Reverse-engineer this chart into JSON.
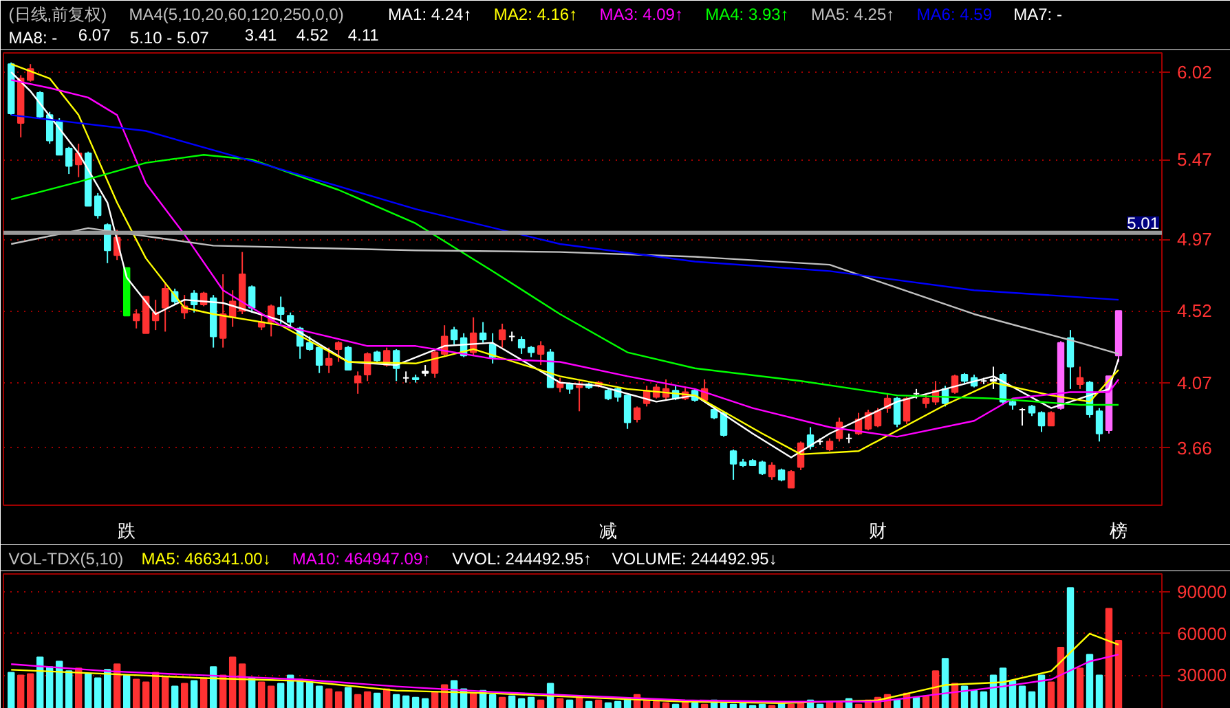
{
  "chart_data": [
    {
      "type": "candlestick",
      "title": "(日线,前复权)",
      "subtitle": "MA4(5,10,20,60,120,250,0,0)",
      "categories": [
        null,
        null,
        null,
        null,
        null,
        null,
        null,
        null,
        null,
        null,
        null,
        null,
        "跌",
        null,
        null,
        null,
        null,
        null,
        null,
        null,
        null,
        null,
        null,
        null,
        null,
        null,
        null,
        null,
        null,
        null,
        null,
        null,
        null,
        null,
        null,
        null,
        null,
        null,
        null,
        null,
        null,
        null,
        null,
        null,
        null,
        null,
        null,
        null,
        null,
        null,
        null,
        null,
        null,
        null,
        null,
        null,
        null,
        null,
        null,
        null,
        null,
        null,
        "减",
        null,
        null,
        null,
        null,
        null,
        null,
        null,
        null,
        null,
        null,
        null,
        null,
        null,
        null,
        null,
        null,
        null,
        null,
        null,
        null,
        null,
        null,
        null,
        null,
        null,
        null,
        null,
        "财",
        null,
        null,
        null,
        null,
        null,
        null,
        null,
        null,
        null,
        null,
        null,
        null,
        null,
        null,
        null,
        null,
        null,
        null,
        null,
        null,
        null,
        null,
        null,
        null,
        "榜"
      ],
      "ohlc": [
        [
          6.07,
          6.08,
          5.75,
          5.76
        ],
        [
          5.7,
          6.0,
          5.61,
          5.98
        ],
        [
          5.97,
          6.07,
          5.96,
          6.04
        ],
        [
          5.89,
          5.9,
          5.73,
          5.74
        ],
        [
          5.75,
          5.77,
          5.57,
          5.59
        ],
        [
          5.71,
          5.73,
          5.5,
          5.5
        ],
        [
          5.54,
          5.55,
          5.38,
          5.43
        ],
        [
          5.44,
          5.57,
          5.36,
          5.51
        ],
        [
          5.51,
          5.52,
          5.18,
          5.18
        ],
        [
          5.24,
          5.26,
          5.1,
          5.12
        ],
        [
          5.06,
          5.07,
          4.82,
          4.9
        ],
        [
          4.87,
          5.03,
          4.84,
          4.98
        ],
        [
          4.79,
          4.79,
          4.49,
          4.49
        ],
        [
          4.46,
          4.53,
          4.41,
          4.5
        ],
        [
          4.38,
          4.61,
          4.38,
          4.61
        ],
        [
          4.46,
          4.59,
          4.4,
          4.51
        ],
        [
          4.54,
          4.7,
          4.39,
          4.66
        ],
        [
          4.64,
          4.66,
          4.56,
          4.58
        ],
        [
          4.51,
          4.62,
          4.47,
          4.55
        ],
        [
          4.63,
          4.65,
          4.51,
          4.56
        ],
        [
          4.56,
          4.64,
          4.55,
          4.63
        ],
        [
          4.6,
          4.62,
          4.29,
          4.36
        ],
        [
          4.35,
          4.75,
          4.29,
          4.5
        ],
        [
          4.48,
          4.65,
          4.42,
          4.58
        ],
        [
          4.52,
          4.89,
          4.5,
          4.75
        ],
        [
          4.67,
          4.68,
          4.51,
          4.54
        ],
        [
          4.42,
          4.51,
          4.4,
          4.45
        ],
        [
          4.45,
          4.56,
          4.36,
          4.55
        ],
        [
          4.54,
          4.61,
          4.44,
          4.5
        ],
        [
          4.49,
          4.51,
          4.42,
          4.45
        ],
        [
          4.41,
          4.42,
          4.22,
          4.3
        ],
        [
          4.32,
          4.36,
          4.27,
          4.28
        ],
        [
          4.29,
          4.3,
          4.13,
          4.18
        ],
        [
          4.18,
          4.29,
          4.13,
          4.22
        ],
        [
          4.28,
          4.33,
          4.2,
          4.32
        ],
        [
          4.29,
          4.3,
          4.15,
          4.15
        ],
        [
          4.07,
          4.14,
          4.0,
          4.11
        ],
        [
          4.12,
          4.26,
          4.08,
          4.25
        ],
        [
          4.26,
          4.27,
          4.2,
          4.21
        ],
        [
          4.18,
          4.29,
          4.17,
          4.27
        ],
        [
          4.27,
          4.28,
          4.08,
          4.16
        ],
        [
          4.1,
          4.14,
          4.07,
          4.1
        ],
        [
          4.1,
          4.12,
          4.07,
          4.09
        ],
        [
          4.14,
          4.18,
          4.11,
          4.13
        ],
        [
          4.13,
          4.27,
          4.1,
          4.26
        ],
        [
          4.25,
          4.43,
          4.24,
          4.36
        ],
        [
          4.4,
          4.42,
          4.31,
          4.34
        ],
        [
          4.35,
          4.38,
          4.23,
          4.24
        ],
        [
          4.26,
          4.48,
          4.24,
          4.38
        ],
        [
          4.38,
          4.45,
          4.32,
          4.34
        ],
        [
          4.31,
          4.38,
          4.19,
          4.23
        ],
        [
          4.34,
          4.44,
          4.29,
          4.4
        ],
        [
          4.36,
          4.39,
          4.33,
          4.36
        ],
        [
          4.34,
          4.36,
          4.25,
          4.29
        ],
        [
          4.29,
          4.3,
          4.23,
          4.26
        ],
        [
          4.25,
          4.33,
          4.18,
          4.3
        ],
        [
          4.26,
          4.28,
          4.04,
          4.04
        ],
        [
          4.04,
          4.1,
          4.01,
          4.07
        ],
        [
          4.06,
          4.07,
          4.0,
          4.03
        ],
        [
          4.04,
          4.08,
          3.89,
          4.05
        ],
        [
          4.06,
          4.07,
          4.03,
          4.04
        ],
        [
          4.05,
          4.08,
          4.04,
          4.07
        ],
        [
          4.02,
          4.03,
          3.96,
          3.97
        ],
        [
          4.03,
          4.04,
          3.95,
          3.98
        ],
        [
          3.99,
          3.99,
          3.78,
          3.82
        ],
        [
          3.84,
          3.92,
          3.82,
          3.91
        ],
        [
          3.94,
          4.05,
          3.92,
          4.02
        ],
        [
          3.98,
          4.06,
          3.97,
          4.04
        ],
        [
          3.98,
          4.09,
          3.96,
          4.03
        ],
        [
          4.02,
          4.05,
          3.96,
          3.97
        ],
        [
          3.97,
          4.04,
          3.96,
          4.01
        ],
        [
          4.02,
          4.03,
          3.95,
          3.96
        ],
        [
          3.96,
          4.09,
          3.96,
          4.03
        ],
        [
          3.9,
          3.92,
          3.84,
          3.85
        ],
        [
          3.88,
          3.88,
          3.73,
          3.74
        ],
        [
          3.64,
          3.65,
          3.46,
          3.56
        ],
        [
          3.57,
          3.59,
          3.54,
          3.55
        ],
        [
          3.58,
          3.59,
          3.55,
          3.55
        ],
        [
          3.57,
          3.58,
          3.49,
          3.5
        ],
        [
          3.48,
          3.57,
          3.46,
          3.55
        ],
        [
          3.52,
          3.53,
          3.45,
          3.46
        ],
        [
          3.41,
          3.52,
          3.41,
          3.51
        ],
        [
          3.54,
          3.7,
          3.52,
          3.69
        ],
        [
          3.74,
          3.79,
          3.65,
          3.67
        ],
        [
          3.7,
          3.72,
          3.68,
          3.7
        ],
        [
          3.65,
          3.72,
          3.64,
          3.7
        ],
        [
          3.72,
          3.85,
          3.7,
          3.82
        ],
        [
          3.72,
          3.75,
          3.69,
          3.72
        ],
        [
          3.75,
          3.88,
          3.74,
          3.84
        ],
        [
          3.78,
          3.9,
          3.77,
          3.88
        ],
        [
          3.8,
          3.91,
          3.79,
          3.89
        ],
        [
          3.91,
          4.0,
          3.88,
          3.97
        ],
        [
          3.97,
          3.98,
          3.79,
          3.81
        ],
        [
          3.83,
          3.98,
          3.81,
          3.97
        ],
        [
          4.0,
          4.03,
          3.97,
          4.0
        ],
        [
          3.94,
          4.0,
          3.91,
          3.97
        ],
        [
          3.95,
          4.08,
          3.93,
          4.02
        ],
        [
          4.03,
          4.05,
          3.92,
          3.94
        ],
        [
          4.01,
          4.12,
          4.0,
          4.11
        ],
        [
          4.12,
          4.13,
          4.06,
          4.08
        ],
        [
          4.1,
          4.12,
          4.04,
          4.05
        ],
        [
          4.08,
          4.1,
          4.06,
          4.08
        ],
        [
          4.09,
          4.17,
          4.03,
          4.08
        ],
        [
          4.12,
          4.13,
          3.93,
          3.95
        ],
        [
          3.95,
          3.96,
          3.9,
          3.93
        ],
        [
          3.9,
          3.91,
          3.8,
          3.9
        ],
        [
          3.92,
          3.93,
          3.86,
          3.88
        ],
        [
          3.88,
          3.89,
          3.76,
          3.8
        ],
        [
          3.8,
          3.89,
          3.8,
          3.88
        ],
        [
          3.91,
          4.33,
          3.9,
          4.32
        ],
        [
          4.35,
          4.4,
          4.03,
          4.17
        ],
        [
          4.06,
          4.17,
          4.03,
          4.1
        ],
        [
          4.07,
          4.08,
          3.85,
          3.87
        ],
        [
          3.89,
          3.91,
          3.7,
          3.75
        ],
        [
          3.77,
          4.11,
          3.75,
          4.11
        ],
        [
          4.24,
          4.52,
          4.2,
          4.52
        ]
      ],
      "colors": [
        "#54ffff",
        "#ff3232",
        "#ff3232",
        "#54ffff",
        "#54ffff",
        "#54ffff",
        "#54ffff",
        "#ff3232",
        "#54ffff",
        "#54ffff",
        "#54ffff",
        "#ff3232",
        "#00ff00",
        "#ff3232",
        "#ff3232",
        "#ff3232",
        "#ff3232",
        "#54ffff",
        "#ff3232",
        "#54ffff",
        "#ff3232",
        "#54ffff",
        "#ff3232",
        "#ff3232",
        "#ff3232",
        "#54ffff",
        "#ff3232",
        "#ff3232",
        "#54ffff",
        "#54ffff",
        "#54ffff",
        "#54ffff",
        "#54ffff",
        "#ff3232",
        "#ff3232",
        "#54ffff",
        "#ff3232",
        "#ff3232",
        "#54ffff",
        "#ff3232",
        "#54ffff",
        "#ffffff",
        "#54ffff",
        "#ffffff",
        "#ff3232",
        "#ff3232",
        "#54ffff",
        "#54ffff",
        "#ff3232",
        "#54ffff",
        "#54ffff",
        "#ff3232",
        "#ffffff",
        "#54ffff",
        "#54ffff",
        "#ff3232",
        "#54ffff",
        "#ff3232",
        "#54ffff",
        "#ff3232",
        "#54ffff",
        "#ff3232",
        "#54ffff",
        "#54ffff",
        "#54ffff",
        "#ff3232",
        "#ff3232",
        "#ff3232",
        "#ff3232",
        "#54ffff",
        "#ff3232",
        "#54ffff",
        "#ff3232",
        "#54ffff",
        "#54ffff",
        "#54ffff",
        "#54ffff",
        "#54ffff",
        "#54ffff",
        "#ff3232",
        "#54ffff",
        "#ff3232",
        "#ff3232",
        "#54ffff",
        "#ffffff",
        "#ff3232",
        "#ff3232",
        "#ffffff",
        "#ff3232",
        "#ff3232",
        "#ff3232",
        "#ff3232",
        "#54ffff",
        "#ff3232",
        "#ffffff",
        "#ff3232",
        "#ff3232",
        "#54ffff",
        "#ff3232",
        "#54ffff",
        "#54ffff",
        "#ffffff",
        "#ffffff",
        "#54ffff",
        "#54ffff",
        "#ffffff",
        "#54ffff",
        "#54ffff",
        "#ff3232",
        "#ff66ff",
        "#54ffff",
        "#ff3232",
        "#54ffff",
        "#54ffff",
        "#ff66ff",
        "#ff66ff"
      ],
      "series": [
        {
          "type": "line",
          "name": "MA1: 4.24↑",
          "color": "#ffffff",
          "values": [
            6.02,
            null,
            5.9,
            null,
            null,
            null,
            null,
            5.51,
            null,
            null,
            5.2,
            null,
            4.73,
            null,
            null,
            4.5,
            null,
            null,
            4.59,
            null,
            null,
            null,
            4.57,
            null,
            null,
            null,
            null,
            null,
            4.46,
            null,
            null,
            null,
            null,
            null,
            null,
            4.2,
            null,
            null,
            null,
            null,
            4.18,
            null,
            null,
            null,
            null,
            4.3,
            null,
            null,
            null,
            null,
            4.32,
            null,
            null,
            null,
            null,
            null,
            null,
            4.07,
            null,
            null,
            null,
            4.05,
            null,
            null,
            null,
            null,
            null,
            3.95,
            null,
            null,
            null,
            3.99,
            null,
            null,
            null,
            null,
            null,
            3.75,
            null,
            null,
            null,
            3.6,
            null,
            null,
            null,
            3.75,
            null,
            null,
            null,
            null,
            null,
            null,
            3.95,
            null,
            null,
            null,
            null,
            null,
            null,
            null,
            null,
            null,
            4.11,
            null,
            null,
            null,
            null,
            null,
            3.91,
            null,
            null,
            null,
            null,
            null,
            4.03,
            4.22
          ]
        },
        {
          "type": "line",
          "name": "MA2: 4.16↑",
          "color": "#ffff00",
          "values": [
            6.07,
            null,
            null,
            null,
            5.98,
            null,
            null,
            5.75,
            null,
            null,
            null,
            5.2,
            null,
            null,
            4.85,
            null,
            null,
            null,
            4.54,
            null,
            null,
            4.5,
            null,
            null,
            null,
            null,
            null,
            null,
            4.43,
            null,
            null,
            null,
            null,
            null,
            null,
            4.2,
            null,
            null,
            null,
            null,
            null,
            null,
            4.19,
            null,
            null,
            null,
            null,
            null,
            4.28,
            null,
            null,
            null,
            null,
            null,
            null,
            null,
            null,
            4.11,
            null,
            null,
            null,
            null,
            null,
            null,
            4.03,
            null,
            null,
            null,
            null,
            null,
            null,
            3.99,
            null,
            null,
            null,
            null,
            null,
            null,
            3.75,
            null,
            null,
            null,
            3.62,
            null,
            null,
            null,
            null,
            null,
            3.64,
            null,
            null,
            null,
            null,
            null,
            null,
            null,
            null,
            3.93,
            null,
            null,
            null,
            null,
            4.07,
            null,
            null,
            null,
            null,
            null,
            3.99,
            null,
            null,
            null,
            3.95,
            null,
            null,
            4.15
          ]
        },
        {
          "type": "line",
          "name": "MA3: 4.09↑",
          "color": "#ff00ff",
          "values": [
            5.97,
            null,
            null,
            null,
            5.92,
            null,
            null,
            null,
            5.86,
            null,
            null,
            5.75,
            null,
            null,
            5.32,
            null,
            null,
            null,
            5.0,
            null,
            null,
            null,
            4.65,
            null,
            null,
            null,
            null,
            null,
            4.43,
            null,
            null,
            null,
            null,
            null,
            null,
            null,
            null,
            4.3,
            null,
            null,
            null,
            null,
            4.3,
            null,
            null,
            null,
            null,
            null,
            null,
            null,
            4.22,
            null,
            null,
            null,
            null,
            null,
            null,
            4.2,
            null,
            null,
            null,
            null,
            null,
            null,
            4.11,
            null,
            null,
            null,
            null,
            null,
            null,
            4.03,
            null,
            null,
            null,
            null,
            null,
            3.91,
            null,
            null,
            null,
            null,
            null,
            null,
            null,
            3.79,
            null,
            null,
            null,
            null,
            null,
            null,
            3.73,
            null,
            null,
            null,
            null,
            null,
            null,
            null,
            3.83,
            null,
            null,
            null,
            3.97,
            null,
            null,
            null,
            null,
            null,
            4.01,
            null,
            null,
            null,
            4.01,
            4.09
          ]
        },
        {
          "type": "line",
          "name": "MA4: 3.93↑",
          "color": "#00ff00",
          "values": [
            5.22,
            null,
            null,
            null,
            null,
            null,
            null,
            5.33,
            null,
            null,
            null,
            null,
            null,
            null,
            5.45,
            null,
            null,
            null,
            null,
            null,
            5.5,
            null,
            null,
            null,
            null,
            5.47,
            null,
            null,
            null,
            null,
            null,
            null,
            null,
            null,
            5.28,
            null,
            null,
            null,
            null,
            null,
            null,
            null,
            5.07,
            null,
            null,
            null,
            null,
            null,
            null,
            null,
            4.77,
            null,
            null,
            null,
            null,
            null,
            null,
            4.5,
            null,
            null,
            null,
            null,
            null,
            null,
            4.26,
            null,
            null,
            null,
            null,
            null,
            null,
            4.16,
            null,
            null,
            null,
            null,
            null,
            null,
            null,
            null,
            null,
            null,
            4.08,
            null,
            null,
            null,
            null,
            null,
            null,
            null,
            null,
            null,
            3.99,
            null,
            null,
            null,
            null,
            null,
            null,
            null,
            null,
            null,
            3.97,
            null,
            null,
            null,
            null,
            null,
            null,
            null,
            null,
            3.93,
            null,
            null,
            null,
            3.93
          ]
        },
        {
          "type": "line",
          "name": "MA5: 4.25↑",
          "color": "#c0c0c0",
          "values": [
            4.94,
            null,
            null,
            null,
            null,
            null,
            null,
            null,
            5.04,
            null,
            null,
            null,
            null,
            null,
            null,
            null,
            null,
            null,
            null,
            null,
            null,
            4.93,
            null,
            null,
            null,
            null,
            null,
            null,
            null,
            null,
            null,
            null,
            null,
            null,
            null,
            null,
            null,
            null,
            null,
            null,
            null,
            null,
            4.9,
            null,
            null,
            null,
            null,
            null,
            null,
            null,
            null,
            null,
            null,
            null,
            null,
            null,
            null,
            4.89,
            null,
            null,
            null,
            null,
            null,
            null,
            null,
            null,
            null,
            null,
            null,
            null,
            null,
            4.86,
            null,
            null,
            null,
            null,
            null,
            null,
            null,
            null,
            null,
            null,
            null,
            null,
            null,
            4.81,
            null,
            null,
            null,
            null,
            null,
            null,
            null,
            null,
            null,
            null,
            null,
            null,
            null,
            null,
            4.5,
            null,
            null,
            null,
            null,
            null,
            null,
            null,
            null,
            null,
            null,
            4.32,
            null,
            null,
            null,
            4.25
          ]
        },
        {
          "type": "line",
          "name": "MA6: 4.59",
          "color": "#0000ff",
          "values": [
            5.75,
            null,
            null,
            null,
            null,
            null,
            null,
            null,
            null,
            null,
            null,
            null,
            null,
            null,
            5.65,
            null,
            null,
            null,
            null,
            null,
            null,
            null,
            null,
            null,
            null,
            null,
            null,
            null,
            5.41,
            null,
            null,
            null,
            null,
            null,
            null,
            null,
            null,
            null,
            null,
            null,
            null,
            null,
            5.16,
            null,
            null,
            null,
            null,
            null,
            null,
            null,
            null,
            null,
            null,
            null,
            null,
            null,
            null,
            4.94,
            null,
            null,
            null,
            null,
            null,
            null,
            null,
            null,
            null,
            null,
            null,
            null,
            null,
            4.83,
            null,
            null,
            null,
            null,
            null,
            null,
            null,
            null,
            null,
            null,
            null,
            null,
            null,
            4.77,
            null,
            null,
            null,
            null,
            null,
            null,
            null,
            null,
            null,
            null,
            null,
            null,
            null,
            null,
            4.65,
            null,
            null,
            null,
            null,
            null,
            null,
            null,
            null,
            null,
            null,
            null,
            null,
            null,
            null,
            4.59
          ]
        }
      ],
      "ylim": [
        3.3,
        6.14
      ],
      "yticks": [
        3.66,
        4.07,
        4.52,
        4.97,
        5.47,
        6.02
      ],
      "grid": "y",
      "ref_lines": [
        {
          "axis": "y",
          "value": 5.01,
          "label": "5.01",
          "color": "#999999"
        }
      ],
      "annotations": [
        "MA7: -",
        "MA8: -",
        "6.07",
        "5.10 - 5.07",
        "3.41",
        "4.52",
        "4.11"
      ]
    },
    {
      "type": "bar",
      "title": "VOL-TDX(5,10)",
      "categories": [
        null,
        null,
        null,
        null,
        null,
        null,
        null,
        null,
        null,
        null,
        null,
        null,
        null,
        null,
        null,
        null,
        null,
        null,
        null,
        null,
        null,
        null,
        null,
        null,
        null,
        null,
        null,
        null,
        null,
        null,
        null,
        null,
        null,
        null,
        null,
        null,
        null,
        null,
        null,
        null,
        null,
        null,
        null,
        null,
        null,
        null,
        null,
        null,
        null,
        null,
        null,
        null,
        null,
        null,
        null,
        null,
        null,
        null,
        null,
        null,
        null,
        null,
        null,
        null,
        null,
        null,
        null,
        null,
        null,
        null,
        null,
        null,
        null,
        null,
        null,
        null,
        null,
        null,
        null,
        null,
        null,
        null,
        null,
        null,
        null,
        null,
        null,
        null,
        null,
        null,
        null,
        null,
        null,
        null,
        null,
        null,
        null,
        null,
        null,
        null,
        null,
        null,
        null,
        null,
        null,
        null,
        null,
        null,
        null,
        null,
        null,
        null,
        null,
        null,
        null,
        null
      ],
      "series": [
        {
          "type": "bar",
          "values": [
            32000,
            30000,
            31000,
            43000,
            36000,
            40000,
            33000,
            35000,
            31000,
            28000,
            34000,
            38000,
            30000,
            27000,
            25000,
            32000,
            29000,
            22000,
            24000,
            26000,
            28000,
            36000,
            30000,
            43000,
            38000,
            28000,
            25000,
            22000,
            24000,
            30000,
            27000,
            25000,
            22000,
            20000,
            18000,
            21000,
            16000,
            18000,
            17000,
            20000,
            16000,
            15000,
            14000,
            13000,
            18000,
            23000,
            26000,
            20000,
            17000,
            19000,
            16000,
            14000,
            15000,
            13000,
            14000,
            12000,
            24000,
            13000,
            12000,
            14000,
            11000,
            12000,
            10000,
            11000,
            13000,
            16000,
            12000,
            11000,
            10000,
            9000,
            11000,
            10000,
            9000,
            12000,
            10000,
            9000,
            11000,
            8000,
            9000,
            8000,
            10000,
            9000,
            10000,
            12000,
            9000,
            11000,
            10000,
            13000,
            9000,
            12000,
            14000,
            16000,
            12000,
            17000,
            14000,
            15000,
            33000,
            42000,
            24000,
            22000,
            19000,
            18000,
            30000,
            35000,
            26000,
            22000,
            18000,
            30000,
            25000,
            50000,
            93000,
            35000,
            45000,
            30000,
            78000,
            55000
          ],
          "colors": [
            "#54ffff",
            "#ff3232",
            "#ff3232",
            "#54ffff",
            "#54ffff",
            "#54ffff",
            "#54ffff",
            "#ff3232",
            "#54ffff",
            "#54ffff",
            "#54ffff",
            "#ff3232",
            "#54ffff",
            "#ff3232",
            "#ff3232",
            "#ff3232",
            "#ff3232",
            "#54ffff",
            "#ff3232",
            "#54ffff",
            "#ff3232",
            "#54ffff",
            "#ff3232",
            "#ff3232",
            "#ff3232",
            "#54ffff",
            "#ff3232",
            "#ff3232",
            "#54ffff",
            "#54ffff",
            "#54ffff",
            "#54ffff",
            "#54ffff",
            "#ff3232",
            "#ff3232",
            "#54ffff",
            "#ff3232",
            "#ff3232",
            "#54ffff",
            "#ff3232",
            "#54ffff",
            "#54ffff",
            "#54ffff",
            "#54ffff",
            "#ff3232",
            "#ff3232",
            "#54ffff",
            "#54ffff",
            "#ff3232",
            "#54ffff",
            "#54ffff",
            "#ff3232",
            "#54ffff",
            "#54ffff",
            "#54ffff",
            "#ff3232",
            "#54ffff",
            "#ff3232",
            "#54ffff",
            "#ff3232",
            "#54ffff",
            "#ff3232",
            "#54ffff",
            "#54ffff",
            "#54ffff",
            "#ff3232",
            "#ff3232",
            "#ff3232",
            "#ff3232",
            "#54ffff",
            "#ff3232",
            "#54ffff",
            "#ff3232",
            "#54ffff",
            "#54ffff",
            "#54ffff",
            "#54ffff",
            "#54ffff",
            "#54ffff",
            "#ff3232",
            "#54ffff",
            "#ff3232",
            "#ff3232",
            "#54ffff",
            "#54ffff",
            "#ff3232",
            "#ff3232",
            "#54ffff",
            "#ff3232",
            "#ff3232",
            "#ff3232",
            "#ff3232",
            "#54ffff",
            "#ff3232",
            "#54ffff",
            "#ff3232",
            "#ff3232",
            "#54ffff",
            "#ff3232",
            "#54ffff",
            "#54ffff",
            "#54ffff",
            "#54ffff",
            "#54ffff",
            "#54ffff",
            "#54ffff",
            "#54ffff",
            "#54ffff",
            "#ff3232",
            "#ff3232",
            "#54ffff",
            "#ff3232",
            "#54ffff",
            "#54ffff",
            "#ff3232",
            "#ff3232"
          ]
        },
        {
          "type": "line",
          "name": "MA5: 466341.00↓",
          "color": "#ffff00",
          "values": [
            34000,
            null,
            null,
            null,
            null,
            null,
            null,
            null,
            null,
            null,
            31000,
            null,
            null,
            null,
            null,
            null,
            null,
            null,
            null,
            null,
            28000,
            null,
            null,
            null,
            null,
            null,
            null,
            null,
            null,
            null,
            26000,
            null,
            null,
            null,
            null,
            null,
            null,
            null,
            null,
            null,
            19000,
            null,
            null,
            null,
            null,
            null,
            null,
            null,
            null,
            null,
            17000,
            null,
            null,
            null,
            null,
            null,
            null,
            null,
            null,
            null,
            14000,
            null,
            null,
            null,
            null,
            null,
            null,
            null,
            null,
            null,
            11000,
            null,
            null,
            null,
            null,
            null,
            null,
            null,
            null,
            null,
            10000,
            null,
            null,
            null,
            null,
            null,
            null,
            null,
            null,
            null,
            12000,
            null,
            null,
            null,
            null,
            null,
            null,
            23000,
            null,
            null,
            null,
            null,
            null,
            25000,
            null,
            null,
            null,
            null,
            33000,
            null,
            null,
            null,
            60000,
            null,
            null,
            52000
          ]
        },
        {
          "type": "line",
          "name": "MA10: 464947.09↑",
          "color": "#ff00ff",
          "values": [
            38000,
            null,
            null,
            null,
            null,
            null,
            null,
            null,
            null,
            null,
            33000,
            null,
            null,
            null,
            null,
            null,
            null,
            null,
            null,
            null,
            30000,
            null,
            null,
            null,
            null,
            null,
            null,
            null,
            null,
            null,
            27000,
            null,
            null,
            null,
            null,
            null,
            null,
            null,
            null,
            null,
            22000,
            null,
            null,
            null,
            null,
            null,
            null,
            null,
            null,
            null,
            18000,
            null,
            null,
            null,
            null,
            null,
            null,
            null,
            null,
            null,
            15000,
            null,
            null,
            null,
            null,
            null,
            null,
            null,
            null,
            null,
            12000,
            null,
            null,
            null,
            null,
            null,
            null,
            null,
            null,
            null,
            11000,
            null,
            null,
            null,
            null,
            null,
            null,
            null,
            null,
            null,
            11000,
            null,
            null,
            null,
            null,
            null,
            null,
            17000,
            null,
            null,
            null,
            null,
            null,
            22000,
            null,
            null,
            null,
            null,
            27000,
            null,
            null,
            null,
            40000,
            null,
            null,
            45000
          ]
        }
      ],
      "ylim": [
        0,
        103000
      ],
      "yticks": [
        30000,
        60000,
        90000
      ],
      "grid": "y",
      "tick_labels": "y",
      "annotations": [
        "VVOL: 244492.95↑",
        "VOLUME: 244492.95↓"
      ]
    }
  ]
}
